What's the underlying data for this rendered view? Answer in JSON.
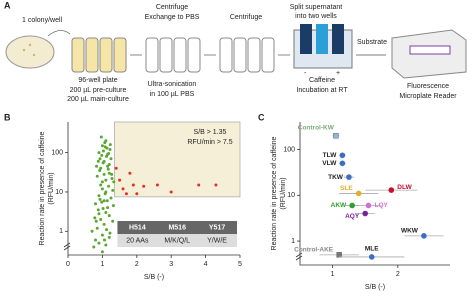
{
  "panel_labels": [
    "A",
    "B",
    "C"
  ],
  "panel_a": {
    "labels": [
      "1 colony/well",
      "Centrifuge",
      "Exchange to PBS",
      "Centrifuge",
      "Split supernatant",
      "into two wells",
      "Substrate",
      "96-well plate",
      "200 µL pre-culture",
      "200 µL main-culture",
      "Ultra-sonication",
      "in 100 µL PBS",
      "Caffeine",
      "Incubation at RT",
      "Fluorescence",
      "Microplate Reader",
      "-",
      "+"
    ]
  },
  "chart_data": [
    {
      "type": "scatter",
      "xlabel": "S/B (-)",
      "ylabel": [
        "Reaction rate in presence of caffeine",
        "(RFU/min)"
      ],
      "xlim": [
        0,
        5
      ],
      "ylim": [
        0.25,
        600
      ],
      "log_y": true,
      "xticks": [
        0,
        1,
        2,
        3,
        4,
        5
      ],
      "yticks": [
        1,
        10,
        100
      ],
      "threshold": {
        "x": 1.35,
        "y": 7.5
      },
      "annotations": [
        "S/B > 1.35",
        "RFU/min > 7.5"
      ],
      "table": {
        "header": [
          "H514",
          "M516",
          "Y517"
        ],
        "row": [
          "20 AAs",
          "M/K/Q/L",
          "Y/W/E"
        ]
      },
      "series": [
        {
          "color": "#5aa832",
          "x": [
            0.75,
            0.8,
            0.85,
            0.9,
            0.95,
            1.0,
            1.05,
            1.1,
            0.8,
            0.9,
            1.0,
            1.1,
            1.2,
            0.95,
            1.05,
            1.15,
            1.0,
            1.1,
            0.9,
            1.2,
            1.25,
            0.85,
            0.95,
            1.05,
            1.15,
            1.2,
            1.3,
            0.7,
            1.0,
            1.1,
            1.2,
            0.88,
            0.98,
            1.08,
            1.18,
            1.28,
            0.92,
            1.02,
            1.12,
            1.22,
            0.97,
            1.07,
            1.13,
            1.03,
            0.93,
            0.83,
            1.17,
            1.27,
            1.33,
            1.3,
            1.25,
            1.1,
            1.0,
            0.9,
            0.82,
            1.12,
            1.22,
            1.32,
            1.05,
            1.15,
            0.98,
            1.08,
            1.18,
            0.88,
            1.23,
            1.02,
            0.93,
            0.78,
            1.14,
            1.06
          ],
          "values": [
            0.4,
            0.6,
            1.2,
            0.5,
            2,
            0.8,
            1.5,
            3,
            5,
            8,
            12,
            20,
            30,
            40,
            60,
            90,
            150,
            200,
            100,
            50,
            70,
            25,
            15,
            6,
            4,
            2.5,
            1.8,
            1,
            0.3,
            0.45,
            0.7,
            3.5,
            5.5,
            9,
            14,
            22,
            35,
            55,
            80,
            120,
            250,
            180,
            130,
            110,
            70,
            45,
            38,
            28,
            18,
            11,
            7,
            10,
            18,
            2.8,
            1.8,
            1.1,
            0.9,
            4.5,
            28,
            45,
            85,
            140,
            95,
            60,
            160,
            3.8,
            6.5,
            2.2,
            6,
            0.6
          ]
        },
        {
          "color": "#e0302a",
          "x": [
            1.4,
            1.5,
            1.6,
            1.7,
            1.8,
            1.9,
            2.0,
            2.2,
            2.6,
            3.0,
            3.8,
            4.3
          ],
          "values": [
            40,
            20,
            12,
            9,
            30,
            15,
            9,
            14,
            15,
            10,
            15,
            15
          ]
        }
      ]
    },
    {
      "type": "scatter",
      "xlabel": "S/B (-)",
      "ylabel": [
        "Reaction rate in presence of caffeine",
        "(RFU/min)"
      ],
      "xlim": [
        0.5,
        2.8
      ],
      "ylim": [
        0.3,
        400
      ],
      "log_y": true,
      "xticks": [
        1,
        2
      ],
      "yticks": [
        1,
        10,
        100
      ],
      "series": [
        {
          "name": "Control-KW",
          "color": "#8fb4e0",
          "label_color": "#7aaa7a",
          "marker": "square",
          "x": [
            1.05
          ],
          "values": [
            200
          ],
          "xerr": [
            0.05
          ]
        },
        {
          "name": "TLW",
          "color": "#3b6fc2",
          "label_color": "#222",
          "x": [
            1.15
          ],
          "values": [
            75
          ],
          "xerr": [
            0.05
          ]
        },
        {
          "name": "VLW",
          "color": "#3b6fc2",
          "label_color": "#222",
          "x": [
            1.15
          ],
          "values": [
            50
          ],
          "xerr": [
            0.05
          ]
        },
        {
          "name": "TKW",
          "color": "#3b6fc2",
          "label_color": "#222",
          "x": [
            1.25
          ],
          "values": [
            25
          ],
          "xerr": [
            0.08
          ]
        },
        {
          "name": "SLE",
          "color": "#e0b020",
          "label_color": "#e0b020",
          "x": [
            1.4
          ],
          "values": [
            11
          ],
          "xerr": [
            0.3
          ]
        },
        {
          "name": "DLW",
          "color": "#c8102e",
          "label_color": "#c8102e",
          "x": [
            1.9
          ],
          "values": [
            13
          ],
          "xerr": [
            0.4
          ]
        },
        {
          "name": "AKW",
          "color": "#2ca02c",
          "label_color": "#2ca02c",
          "x": [
            1.3
          ],
          "values": [
            6
          ],
          "xerr": [
            0.1
          ]
        },
        {
          "name": "LQY",
          "color": "#d070d0",
          "label_color": "#d070d0",
          "x": [
            1.55
          ],
          "values": [
            6
          ],
          "xerr": [
            0.2
          ]
        },
        {
          "name": "AQY",
          "color": "#7a1fa0",
          "label_color": "#7a1fa0",
          "x": [
            1.5
          ],
          "values": [
            4
          ],
          "xerr": [
            0.15
          ]
        },
        {
          "name": "WKW",
          "color": "#3b6fc2",
          "label_color": "#222",
          "x": [
            2.4
          ],
          "values": [
            1.3
          ],
          "xerr": [
            0.3
          ]
        },
        {
          "name": "Control-AKE",
          "color": "#777",
          "label_color": "#888",
          "marker": "square",
          "x": [
            1.1
          ],
          "values": [
            0.5
          ],
          "xerr": [
            0.3
          ]
        },
        {
          "name": "MLE",
          "color": "#3b6fc2",
          "label_color": "#222",
          "x": [
            1.6
          ],
          "values": [
            0.45
          ],
          "xerr": [
            0.5
          ]
        }
      ]
    }
  ]
}
